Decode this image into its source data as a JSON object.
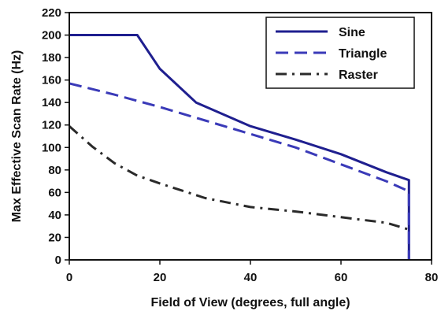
{
  "chart_data": {
    "type": "line",
    "title": "",
    "xlabel": "Field of View (degrees, full angle)",
    "ylabel": "Max Effective Scan Rate (Hz)",
    "xlim": [
      0,
      80
    ],
    "ylim": [
      0,
      220
    ],
    "x_ticks": [
      0,
      20,
      40,
      60,
      80
    ],
    "y_ticks": [
      0,
      20,
      40,
      60,
      80,
      100,
      120,
      140,
      160,
      180,
      200,
      220
    ],
    "grid": false,
    "legend_position": "top-right",
    "series": [
      {
        "name": "Sine",
        "color": "#1f1f8f",
        "dash": "solid",
        "points": [
          [
            0,
            200
          ],
          [
            15,
            200
          ],
          [
            20,
            170
          ],
          [
            28,
            140
          ],
          [
            40,
            119
          ],
          [
            50,
            107
          ],
          [
            60,
            94
          ],
          [
            70,
            78
          ],
          [
            75,
            71
          ],
          [
            75,
            0
          ]
        ]
      },
      {
        "name": "Triangle",
        "color": "#3a3ab8",
        "dash": "dashed",
        "points": [
          [
            0,
            157
          ],
          [
            10,
            147
          ],
          [
            20,
            136
          ],
          [
            30,
            124
          ],
          [
            40,
            112
          ],
          [
            50,
            100
          ],
          [
            60,
            85
          ],
          [
            70,
            70
          ],
          [
            75,
            61
          ],
          [
            75,
            0
          ]
        ]
      },
      {
        "name": "Raster",
        "color": "#2a2a2a",
        "dash": "dash-dot",
        "points": [
          [
            0,
            119
          ],
          [
            5,
            101
          ],
          [
            10,
            86
          ],
          [
            15,
            75
          ],
          [
            20,
            68
          ],
          [
            30,
            55
          ],
          [
            40,
            47
          ],
          [
            50,
            43
          ],
          [
            60,
            38
          ],
          [
            70,
            33
          ],
          [
            75,
            27
          ]
        ]
      }
    ]
  }
}
